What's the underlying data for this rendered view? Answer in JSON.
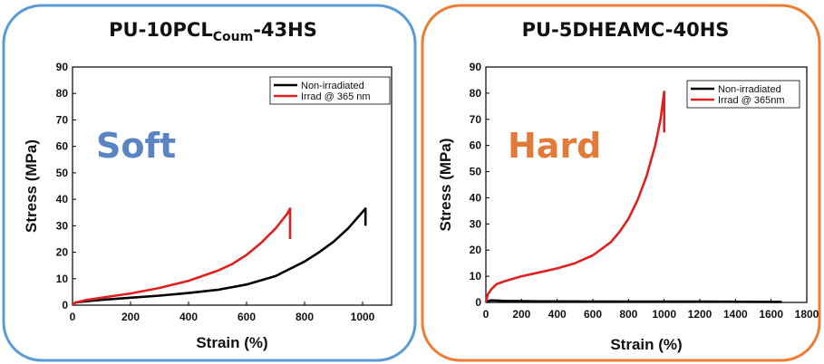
{
  "colors": {
    "panel_left_border": "#5b9bd5",
    "panel_right_border": "#ed7d31",
    "soft_word": "#5b84c4",
    "hard_word": "#e07b39",
    "series_non_irradiated": "#000000",
    "series_irradiated": "#e02020"
  },
  "chart_data": [
    {
      "type": "line",
      "title": "PU-10PCLCoum-43HS",
      "title_parts": {
        "main": "PU-10PCL",
        "subscript": "Coum",
        "suffix": "-43HS"
      },
      "annotation": "Soft",
      "xlabel": "Strain (%)",
      "ylabel": "Stress (MPa)",
      "xlim": [
        0,
        1100
      ],
      "ylim": [
        0,
        90
      ],
      "xticks": [
        0,
        200,
        400,
        600,
        800,
        1000
      ],
      "yticks": [
        0,
        10,
        20,
        30,
        40,
        50,
        60,
        70,
        80,
        90
      ],
      "legend_position": "top-right",
      "series": [
        {
          "name": "Non-irradiated",
          "color": "#000000",
          "x": [
            0,
            10,
            50,
            100,
            200,
            300,
            400,
            500,
            600,
            700,
            800,
            850,
            900,
            950,
            990,
            1010,
            1010
          ],
          "y": [
            0,
            1,
            1.5,
            2,
            2.8,
            3.6,
            4.6,
            5.8,
            7.8,
            11,
            16.5,
            20,
            24,
            29,
            34,
            36.5,
            30
          ]
        },
        {
          "name": "Irrad @ 365 nm",
          "color": "#e02020",
          "x": [
            0,
            10,
            50,
            100,
            200,
            300,
            400,
            500,
            550,
            600,
            650,
            700,
            740,
            750,
            750
          ],
          "y": [
            0,
            1,
            2,
            2.8,
            4.4,
            6.5,
            9.2,
            13,
            15.5,
            19,
            23.5,
            29,
            34.5,
            36.5,
            25
          ]
        }
      ]
    },
    {
      "type": "line",
      "title": "PU-5DHEAMC-40HS",
      "annotation": "Hard",
      "xlabel": "Strain (%)",
      "ylabel": "Stress (MPa)",
      "xlim": [
        0,
        1800
      ],
      "ylim": [
        0,
        90
      ],
      "xticks": [
        0,
        200,
        400,
        600,
        800,
        1000,
        1200,
        1400,
        1600,
        1800
      ],
      "yticks": [
        0,
        10,
        20,
        30,
        40,
        50,
        60,
        70,
        80,
        90
      ],
      "legend_position": "top-right",
      "series": [
        {
          "name": "Non-irradiated",
          "color": "#000000",
          "x": [
            0,
            10,
            30,
            100,
            300,
            800,
            1200,
            1660
          ],
          "y": [
            0,
            0.5,
            0.8,
            0.6,
            0.4,
            0.3,
            0.3,
            0.2
          ]
        },
        {
          "name": "Irrad @ 365nm",
          "color": "#e02020",
          "x": [
            0,
            10,
            30,
            60,
            100,
            200,
            300,
            400,
            500,
            600,
            700,
            750,
            800,
            850,
            900,
            950,
            980,
            1000,
            1000
          ],
          "y": [
            0,
            3,
            5,
            7,
            8,
            10,
            11.5,
            13,
            15,
            18,
            23,
            27,
            32,
            39,
            48,
            60,
            70,
            80.5,
            65
          ]
        }
      ]
    }
  ]
}
